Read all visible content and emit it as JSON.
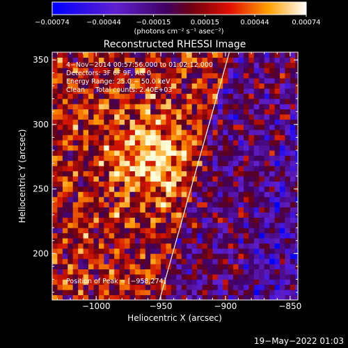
{
  "chart_data": {
    "type": "heatmap",
    "title": "Reconstructed RHESSI Image",
    "xlabel": "Heliocentric X (arcsec)",
    "ylabel": "Heliocentric Y (arcsec)",
    "xlim": [
      -1034,
      -844
    ],
    "ylim": [
      164,
      356
    ],
    "xticks": [
      -1000,
      -950,
      -900,
      -850
    ],
    "xtick_labels": [
      "−1000",
      "−950",
      "−900",
      "−850"
    ],
    "yticks": [
      200,
      250,
      300,
      350
    ],
    "ytick_labels": [
      "200",
      "250",
      "300",
      "350"
    ],
    "colorbar": {
      "min": -0.00074,
      "max": 0.00074,
      "ticks": [
        -0.00074,
        -0.00044,
        -0.00015,
        0.00015,
        0.00044,
        0.00074
      ],
      "tick_labels": [
        "−0.00074",
        "−0.00044",
        "−0.00015",
        "0.00015",
        "0.00044",
        "0.00074"
      ],
      "unit_label": "(photons cm⁻² s⁻¹ asec⁻²)"
    },
    "annotations": {
      "time_range": "4−Nov−2014 00:57:56.000 to 01:02:12.000",
      "detectors": "Detectors: 3F 6F 9F, Att 0",
      "energy_range": "Energy Range: 25.0 − 50.0 keV",
      "method_counts": "Clean     Total counts: 2.40E+03",
      "peak_position": "Position of Peak = [−958,274]"
    },
    "peak": [
      -958,
      274
    ],
    "limb_line": [
      [
        -951,
        164
      ],
      [
        -897,
        356
      ]
    ],
    "colormap": "rhessi-blue-purple-red-yellow-white",
    "grid": false
  },
  "footer": {
    "date": "19−May−2022 01:03"
  }
}
